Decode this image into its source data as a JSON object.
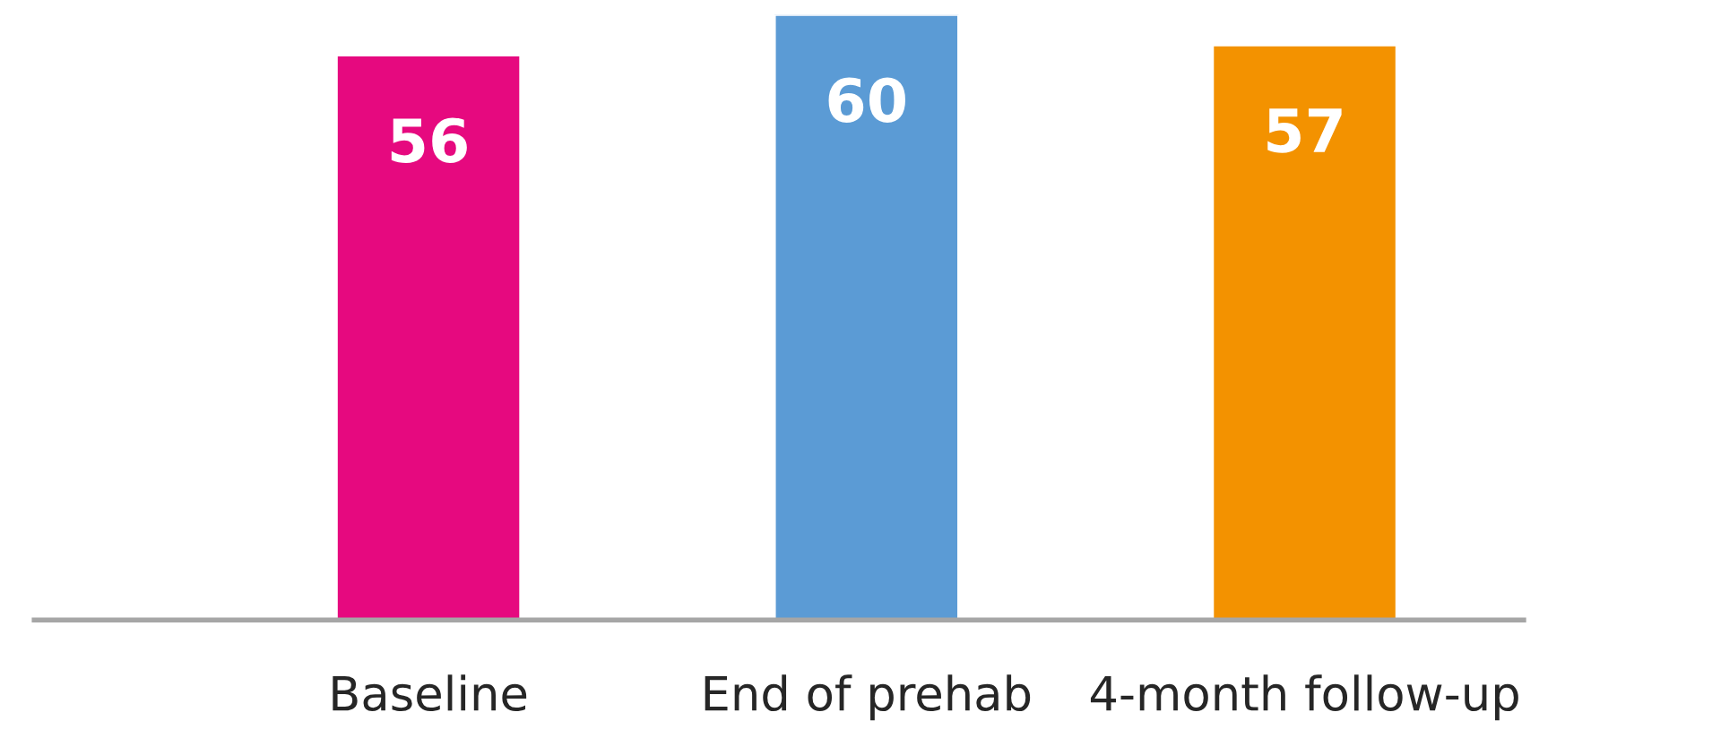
{
  "chart_data": {
    "type": "bar",
    "categories": [
      "Baseline",
      "End of prehab",
      "4-month follow-up"
    ],
    "values": [
      56,
      60,
      57
    ],
    "colors": [
      "#e6097f",
      "#5b9bd5",
      "#f39200"
    ],
    "data_labels": true,
    "grid": false,
    "legend": false
  }
}
